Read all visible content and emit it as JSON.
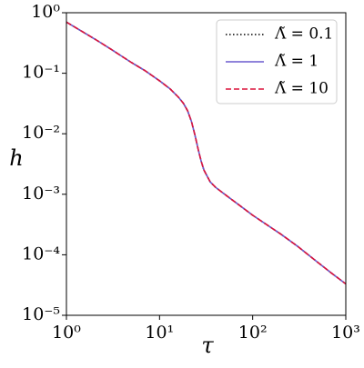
{
  "chart_data": {
    "type": "line",
    "x_label": "τ",
    "y_label": "h",
    "xscale": "log",
    "yscale": "log",
    "xlim": [
      1,
      1000
    ],
    "ylim": [
      1e-05,
      1
    ],
    "xticks": [
      {
        "value": 1,
        "label": "10⁰"
      },
      {
        "value": 10,
        "label": "10¹"
      },
      {
        "value": 100,
        "label": "10²"
      },
      {
        "value": 1000,
        "label": "10³"
      }
    ],
    "yticks": [
      {
        "value": 1e-05,
        "label": "10⁻⁵"
      },
      {
        "value": 0.0001,
        "label": "10⁻⁴"
      },
      {
        "value": 0.001,
        "label": "10⁻³"
      },
      {
        "value": 0.01,
        "label": "10⁻²"
      },
      {
        "value": 0.1,
        "label": "10⁻¹"
      },
      {
        "value": 1,
        "label": "10⁰"
      }
    ],
    "legend": "upper right",
    "x": [
      1,
      2,
      3,
      5,
      7,
      10,
      13,
      16,
      18,
      20,
      22,
      24,
      26,
      28,
      30,
      35,
      40,
      50,
      70,
      100,
      200,
      300,
      500,
      700,
      1000
    ],
    "series": [
      {
        "name": "Λ̃ = 0.1",
        "color": "#000000",
        "dash": "dotted",
        "values": [
          0.7,
          0.37,
          0.25,
          0.15,
          0.11,
          0.075,
          0.055,
          0.04,
          0.032,
          0.024,
          0.016,
          0.0095,
          0.0055,
          0.0035,
          0.0025,
          0.0016,
          0.0013,
          0.001,
          0.00068,
          0.00045,
          0.00022,
          0.00014,
          7.5e-05,
          5e-05,
          3.3e-05
        ]
      },
      {
        "name": "Λ̃ = 1",
        "color": "#6a5acd",
        "dash": "solid",
        "values": [
          0.7,
          0.37,
          0.25,
          0.15,
          0.11,
          0.075,
          0.055,
          0.04,
          0.032,
          0.024,
          0.016,
          0.0095,
          0.0055,
          0.0035,
          0.0025,
          0.0016,
          0.0013,
          0.001,
          0.00068,
          0.00045,
          0.00022,
          0.00014,
          7.5e-05,
          5e-05,
          3.3e-05
        ]
      },
      {
        "name": "Λ̃ = 10",
        "color": "#dc143c",
        "dash": "dashed",
        "values": [
          0.7,
          0.37,
          0.25,
          0.15,
          0.11,
          0.075,
          0.055,
          0.04,
          0.032,
          0.024,
          0.016,
          0.0095,
          0.0055,
          0.0035,
          0.0025,
          0.0016,
          0.0013,
          0.001,
          0.00068,
          0.00045,
          0.00022,
          0.00014,
          7.5e-05,
          5e-05,
          3.3e-05
        ]
      }
    ]
  }
}
